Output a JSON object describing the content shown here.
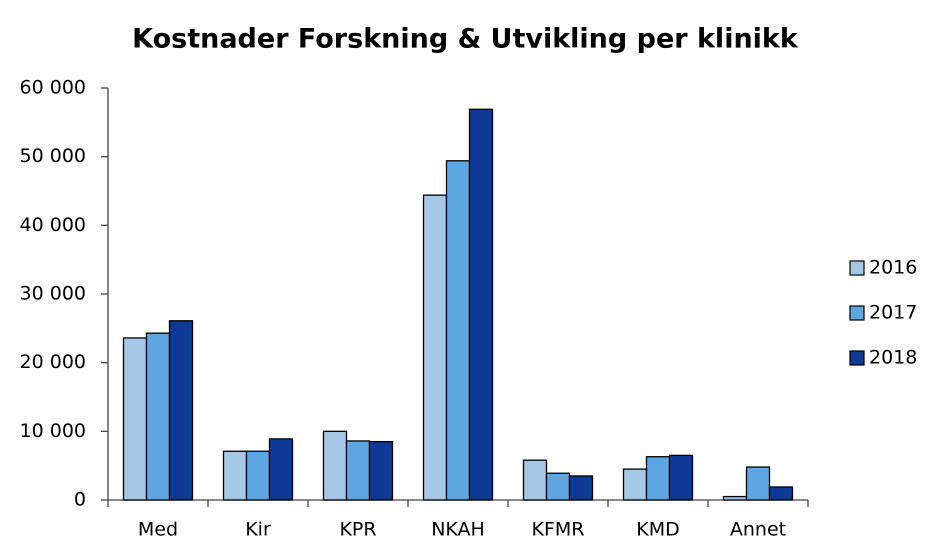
{
  "chart_data": {
    "type": "bar",
    "title": "Kostnader Forskning & Utvikling per klinikk",
    "categories": [
      "Med",
      "Kir",
      "KPR",
      "NKAH",
      "KFMR",
      "KMD",
      "Annet"
    ],
    "series": [
      {
        "name": "2016",
        "color": "#a7c7e7",
        "values": [
          23600,
          7100,
          10000,
          44400,
          5800,
          4500,
          500
        ]
      },
      {
        "name": "2017",
        "color": "#5ea6e2",
        "values": [
          24300,
          7100,
          8600,
          49400,
          3900,
          6300,
          4800
        ]
      },
      {
        "name": "2018",
        "color": "#0d3a94",
        "values": [
          26100,
          8900,
          8500,
          56900,
          3500,
          6500,
          1900
        ]
      }
    ],
    "ylim": [
      0,
      60000
    ],
    "yticks": [
      0,
      {
        "value": 10000,
        "label": "10 000"
      },
      {
        "value": 20000,
        "label": "20 000"
      },
      {
        "value": 30000,
        "label": "30 000"
      },
      {
        "value": 40000,
        "label": "40 000"
      },
      {
        "value": 50000,
        "label": "50 000"
      },
      {
        "value": 60000,
        "label": "60 000"
      }
    ],
    "legend": "right"
  }
}
